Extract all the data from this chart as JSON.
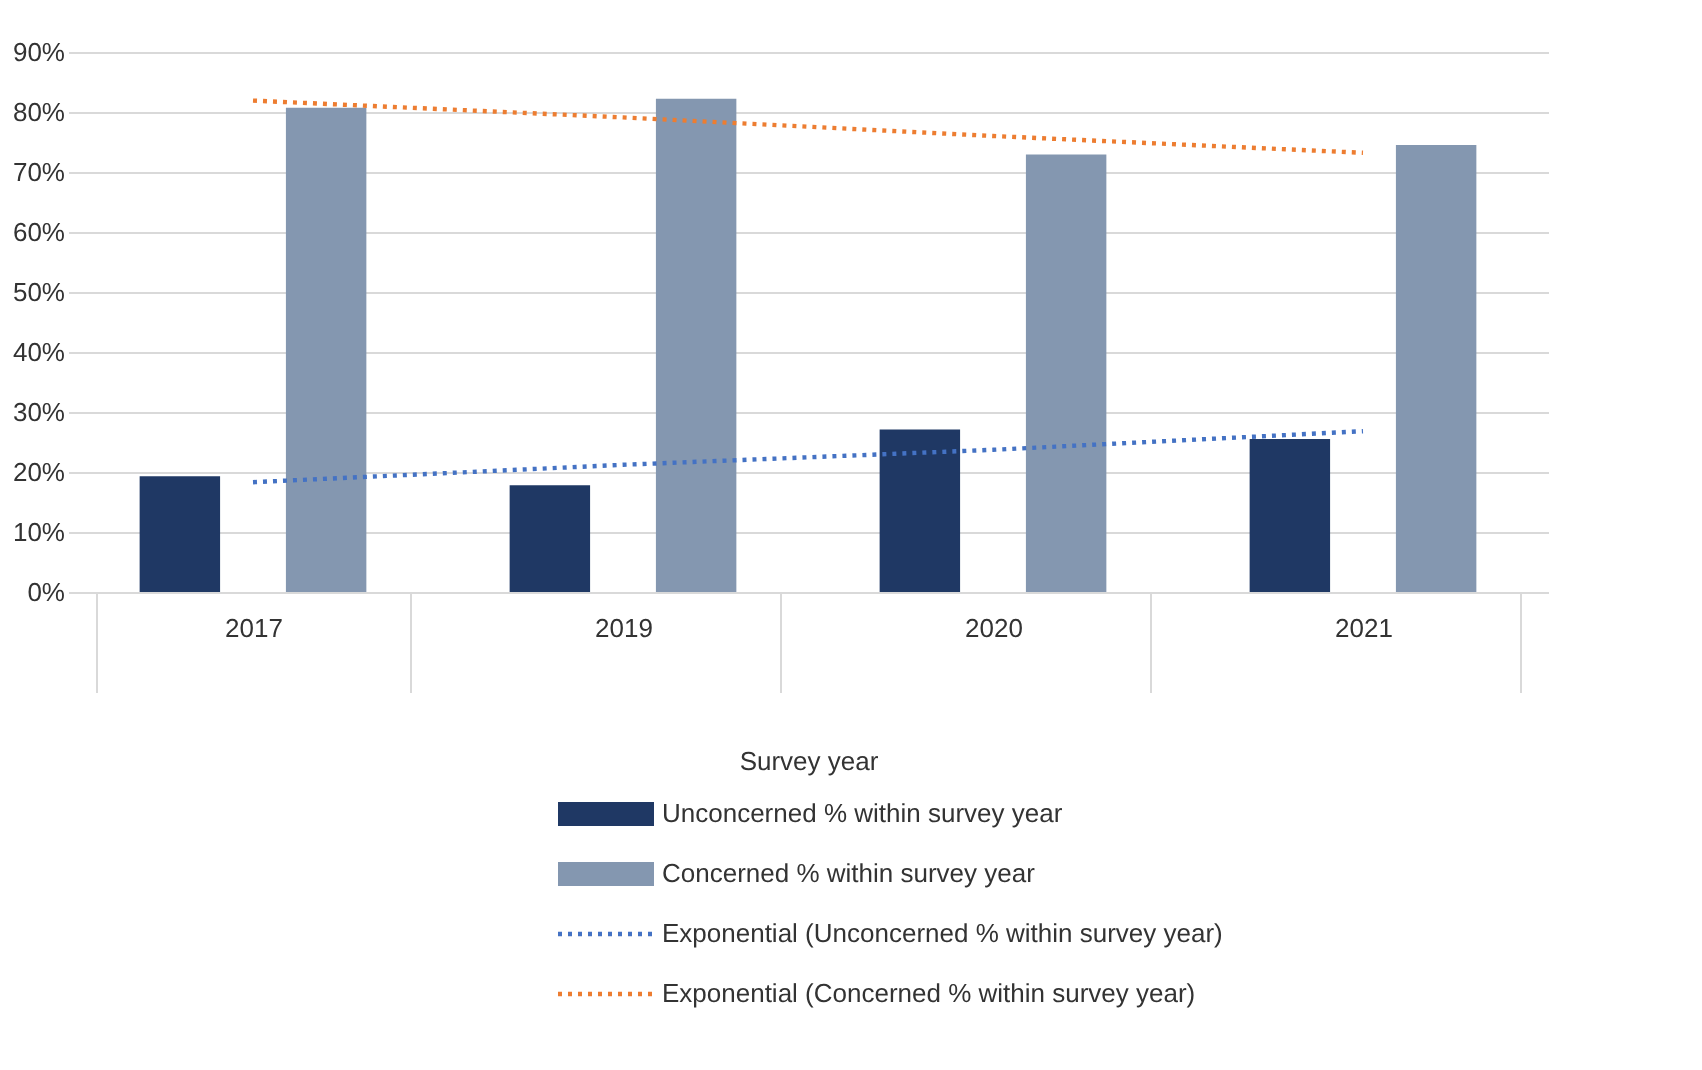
{
  "chart_data": {
    "type": "bar",
    "xlabel": "Survey year",
    "categories": [
      "2017",
      "2019",
      "2020",
      "2021"
    ],
    "series": [
      {
        "name": "Unconcerned % within survey year",
        "color": "#1f3864",
        "values": [
          19.3,
          17.8,
          27.1,
          25.5
        ]
      },
      {
        "name": "Concerned % within survey year",
        "color": "#8497b0",
        "values": [
          80.7,
          82.2,
          72.9,
          74.5
        ]
      },
      {
        "name": "Exponential (Unconcerned % within survey year)",
        "type": "line",
        "line_style": "dotted",
        "marker": "none",
        "color": "#4472c4",
        "values": [
          18.3,
          21.2,
          23.7,
          26.8
        ]
      },
      {
        "name": "Exponential (Concerned % within survey year)",
        "type": "line",
        "line_style": "dotted",
        "marker": "none",
        "color": "#ed7d31",
        "values": [
          81.9,
          79.1,
          76.0,
          73.2
        ]
      }
    ],
    "ylim": [
      0,
      90
    ],
    "yticks": [
      {
        "value": 0,
        "label": "0%"
      },
      {
        "value": 10,
        "label": "10%"
      },
      {
        "value": 20,
        "label": "20%"
      },
      {
        "value": 30,
        "label": "30%"
      },
      {
        "value": 40,
        "label": "40%"
      },
      {
        "value": 50,
        "label": "50%"
      },
      {
        "value": 60,
        "label": "60%"
      },
      {
        "value": 70,
        "label": "70%"
      },
      {
        "value": 80,
        "label": "80%"
      },
      {
        "value": 90,
        "label": "90%"
      }
    ],
    "grid": "y",
    "legend": "bottom"
  }
}
